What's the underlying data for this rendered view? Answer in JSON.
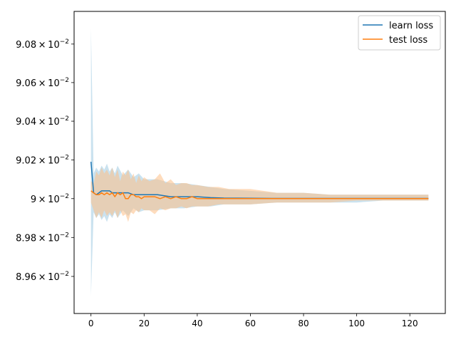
{
  "chart_data": {
    "type": "line",
    "title": "",
    "xlabel": "",
    "ylabel": "",
    "xlim": [
      -6.35,
      133.35
    ],
    "ylim": [
      0.08941,
      0.09097
    ],
    "y_scale": "log",
    "grid": false,
    "legend_position": "top-right",
    "x_ticks": [
      {
        "value": 0,
        "label": "0"
      },
      {
        "value": 20,
        "label": "20"
      },
      {
        "value": 40,
        "label": "40"
      },
      {
        "value": 60,
        "label": "60"
      },
      {
        "value": 80,
        "label": "80"
      },
      {
        "value": 100,
        "label": "100"
      },
      {
        "value": 120,
        "label": "120"
      }
    ],
    "y_ticks": [
      {
        "value": 0.0896,
        "mantissa": "8.96",
        "exponent": "−2",
        "label": "8.96 × 10^−2"
      },
      {
        "value": 0.0898,
        "mantissa": "8.98",
        "exponent": "−2",
        "label": "8.98 × 10^−2"
      },
      {
        "value": 0.09,
        "mantissa": "9",
        "exponent": "−2",
        "label": "9 × 10^−2"
      },
      {
        "value": 0.0902,
        "mantissa": "9.02",
        "exponent": "−2",
        "label": "9.02 × 10^−2"
      },
      {
        "value": 0.0904,
        "mantissa": "9.04",
        "exponent": "−2",
        "label": "9.04 × 10^−2"
      },
      {
        "value": 0.0906,
        "mantissa": "9.06",
        "exponent": "−2",
        "label": "9.06 × 10^−2"
      },
      {
        "value": 0.0908,
        "mantissa": "9.08",
        "exponent": "−2",
        "label": "9.08 × 10^−2"
      }
    ],
    "series": [
      {
        "name": "learn loss",
        "color": "#1f77b4",
        "band_color": "#9ecae1",
        "band_opacity": 0.55,
        "x": [
          0,
          1,
          2,
          3,
          4,
          5,
          6,
          7,
          8,
          9,
          10,
          12,
          14,
          16,
          18,
          20,
          25,
          30,
          35,
          40,
          45,
          50,
          60,
          70,
          80,
          90,
          100,
          110,
          120,
          127
        ],
        "y": [
          0.09019,
          0.09003,
          0.09002,
          0.09003,
          0.09004,
          0.09004,
          0.09004,
          0.09004,
          0.09003,
          0.09003,
          0.09003,
          0.09003,
          0.09003,
          0.09002,
          0.09002,
          0.09002,
          0.09002,
          0.09001,
          0.09001,
          0.09001,
          0.090005,
          0.090003,
          0.090002,
          0.090001,
          0.090001,
          0.090001,
          0.090001,
          0.090001,
          0.090001,
          0.090001
        ],
        "upper": [
          0.09088,
          0.09013,
          0.09016,
          0.09014,
          0.09017,
          0.09015,
          0.09018,
          0.09014,
          0.09016,
          0.09013,
          0.09017,
          0.09012,
          0.09015,
          0.09011,
          0.09013,
          0.0901,
          0.0901,
          0.09008,
          0.09008,
          0.09007,
          0.09006,
          0.09005,
          0.09004,
          0.09003,
          0.09003,
          0.09002,
          0.09002,
          0.09002,
          0.09002,
          0.09002
        ],
        "lower": [
          0.0895,
          0.08993,
          0.0899,
          0.08992,
          0.08989,
          0.08991,
          0.08988,
          0.08992,
          0.0899,
          0.08993,
          0.0899,
          0.08994,
          0.08991,
          0.08995,
          0.08993,
          0.08994,
          0.08994,
          0.08995,
          0.08995,
          0.08996,
          0.08996,
          0.08997,
          0.08997,
          0.08998,
          0.08998,
          0.08998,
          0.08998,
          0.08999,
          0.08999,
          0.08999
        ]
      },
      {
        "name": "test loss",
        "color": "#ff7f0e",
        "band_color": "#fdbf87",
        "band_opacity": 0.55,
        "x": [
          0,
          1,
          2,
          3,
          4,
          5,
          6,
          7,
          8,
          9,
          10,
          11,
          12,
          13,
          14,
          15,
          16,
          17,
          18,
          19,
          20,
          22,
          24,
          26,
          28,
          30,
          32,
          34,
          36,
          38,
          40,
          44,
          48,
          52,
          56,
          60,
          70,
          80,
          90,
          100,
          110,
          120,
          127
        ],
        "y": [
          0.09004,
          0.09003,
          0.09002,
          0.09002,
          0.09003,
          0.09002,
          0.09003,
          0.09002,
          0.09003,
          0.09001,
          0.09003,
          0.09002,
          0.09003,
          0.09,
          0.09,
          0.09002,
          0.09002,
          0.09001,
          0.09001,
          0.09,
          0.09001,
          0.09001,
          0.09001,
          0.09,
          0.09001,
          0.09,
          0.09001,
          0.09,
          0.09,
          0.09001,
          0.09,
          0.09,
          0.09,
          0.09,
          0.09,
          0.09,
          0.09,
          0.09,
          0.09,
          0.09,
          0.09,
          0.09,
          0.09
        ],
        "upper": [
          0.09009,
          0.09008,
          0.09014,
          0.09012,
          0.09016,
          0.09013,
          0.09015,
          0.09012,
          0.09016,
          0.09011,
          0.09015,
          0.09009,
          0.09014,
          0.09012,
          0.09015,
          0.0901,
          0.09013,
          0.09008,
          0.09012,
          0.09009,
          0.09011,
          0.09009,
          0.0901,
          0.09013,
          0.09008,
          0.0901,
          0.09007,
          0.09008,
          0.09008,
          0.09007,
          0.09007,
          0.09006,
          0.09006,
          0.09005,
          0.09005,
          0.09005,
          0.09003,
          0.09003,
          0.09002,
          0.09002,
          0.09002,
          0.09002,
          0.09002
        ],
        "lower": [
          0.08998,
          0.08994,
          0.0899,
          0.08993,
          0.0899,
          0.08994,
          0.08991,
          0.08993,
          0.08991,
          0.08994,
          0.0899,
          0.08994,
          0.08991,
          0.08992,
          0.08988,
          0.08993,
          0.08992,
          0.08994,
          0.08993,
          0.08995,
          0.08994,
          0.08994,
          0.08992,
          0.08995,
          0.08994,
          0.08995,
          0.08995,
          0.08996,
          0.08995,
          0.08996,
          0.08996,
          0.08996,
          0.08997,
          0.08997,
          0.08997,
          0.08997,
          0.08998,
          0.08998,
          0.08998,
          0.08999,
          0.08999,
          0.08999,
          0.08999
        ]
      }
    ]
  }
}
